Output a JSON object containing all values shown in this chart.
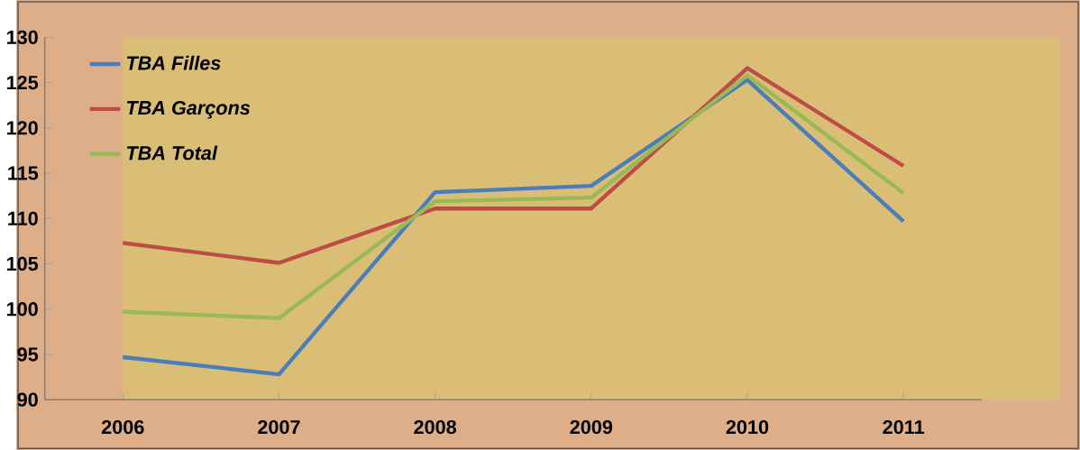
{
  "chart_data": {
    "type": "line",
    "categories": [
      "2006",
      "2007",
      "2008",
      "2009",
      "2010",
      "2011"
    ],
    "series": [
      {
        "name": "TBA Filles",
        "color": "#4a7ebb",
        "values": [
          94.7,
          92.8,
          112.9,
          113.6,
          125.3,
          109.7
        ]
      },
      {
        "name": "TBA Garçons",
        "color": "#be4b48",
        "values": [
          107.3,
          105.1,
          111.1,
          111.1,
          126.6,
          115.8
        ]
      },
      {
        "name": "TBA Total",
        "color": "#98b954",
        "values": [
          99.7,
          99.0,
          111.9,
          112.3,
          125.8,
          112.8
        ]
      }
    ],
    "ylim": [
      90,
      130
    ],
    "yticks": [
      90,
      95,
      100,
      105,
      110,
      115,
      120,
      125,
      130
    ],
    "legend": "top left"
  }
}
